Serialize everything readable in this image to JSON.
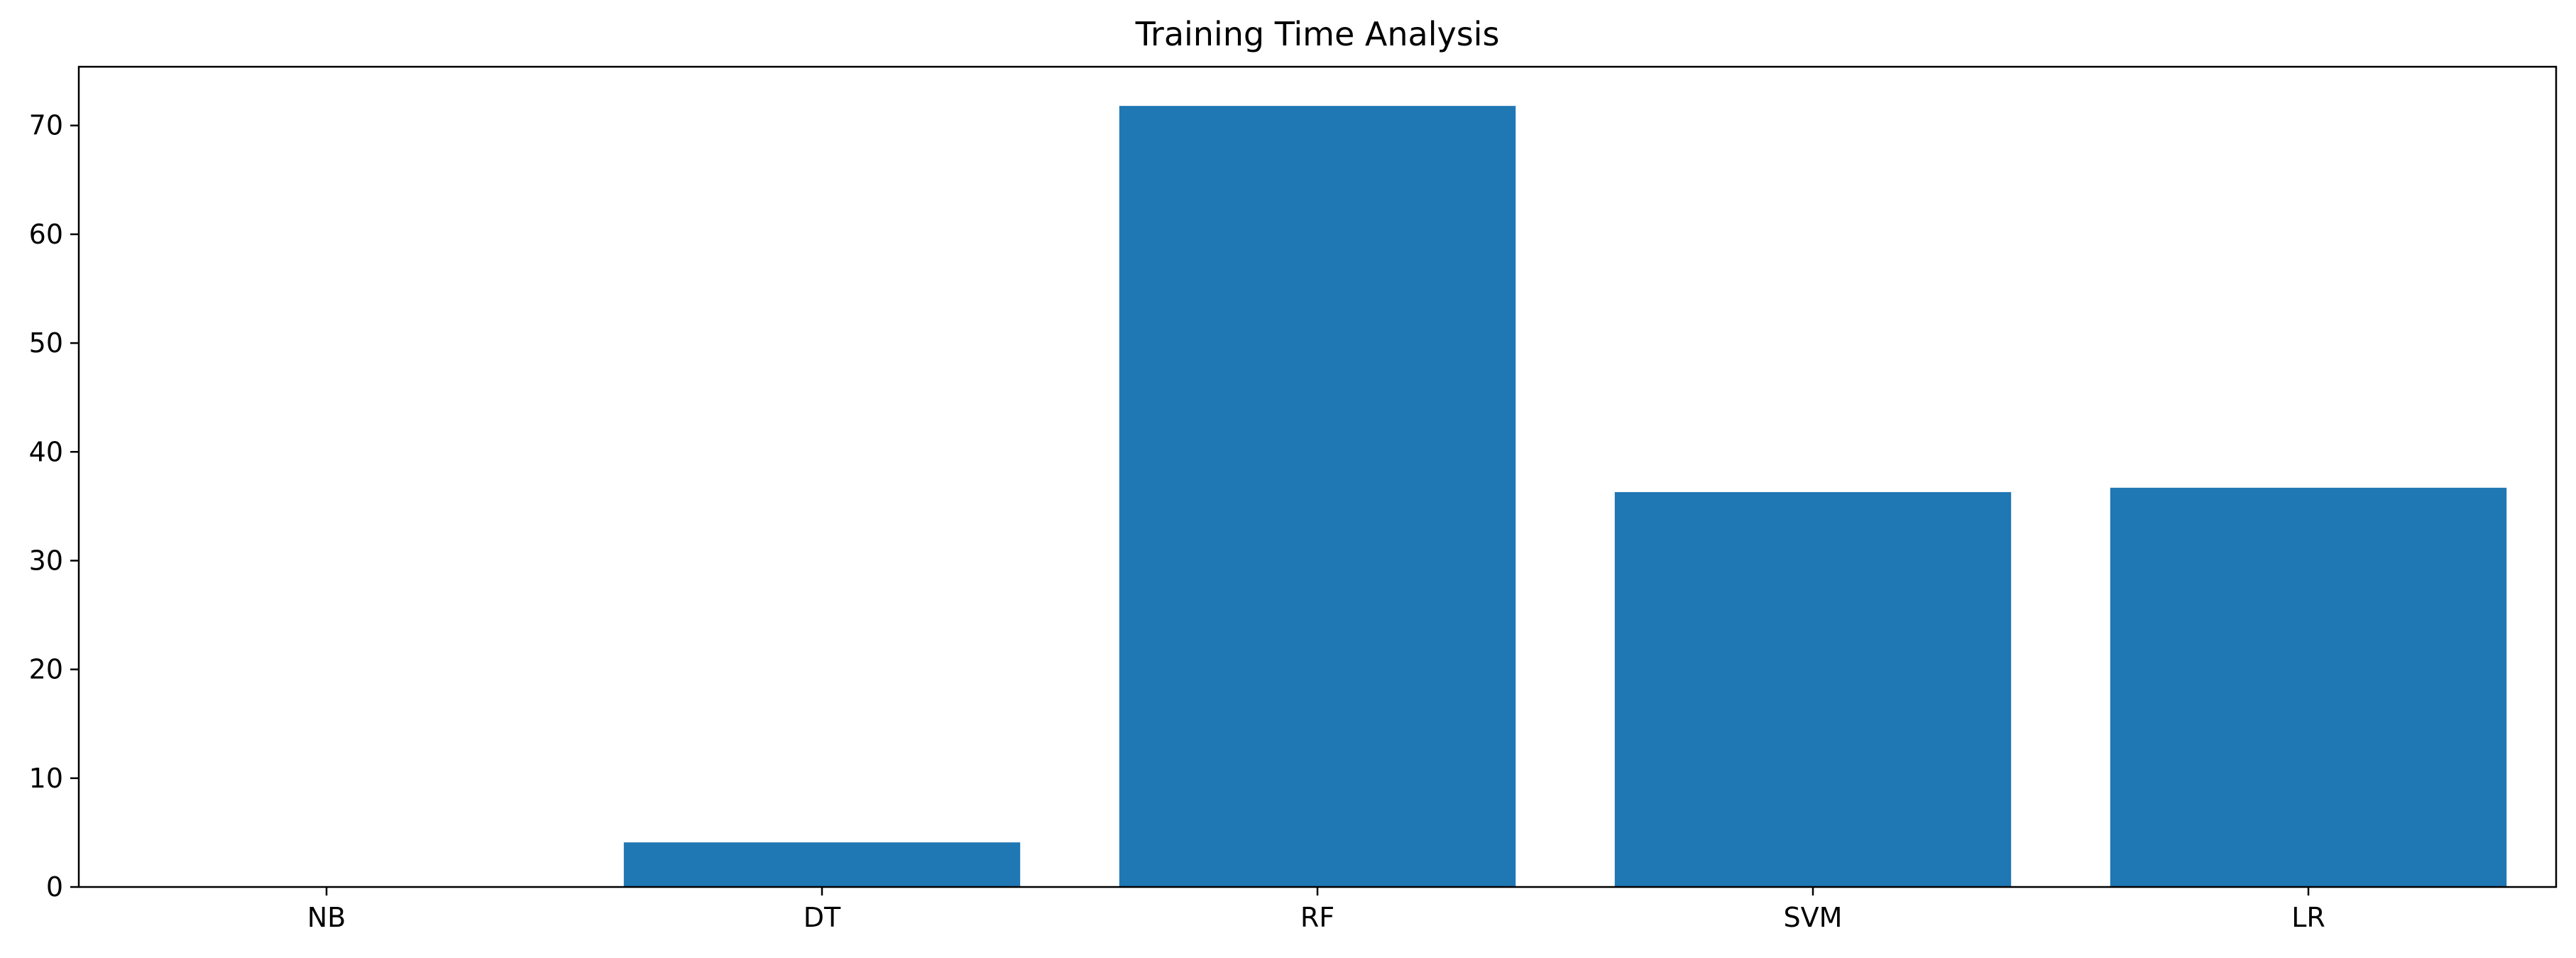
{
  "chart_data": {
    "type": "bar",
    "title": "Training Time Analysis",
    "xlabel": "",
    "ylabel": "",
    "categories": [
      "NB",
      "DT",
      "RF",
      "SVM",
      "LR"
    ],
    "values": [
      0.05,
      4.1,
      71.8,
      36.3,
      36.7
    ],
    "ylim": [
      0,
      75.4
    ],
    "yticks": [
      0,
      10,
      20,
      30,
      40,
      50,
      60,
      70
    ],
    "grid": false,
    "legend": "none",
    "colors": {
      "bar": "#1f77b4",
      "axis": "#000000",
      "background": "#ffffff"
    }
  }
}
